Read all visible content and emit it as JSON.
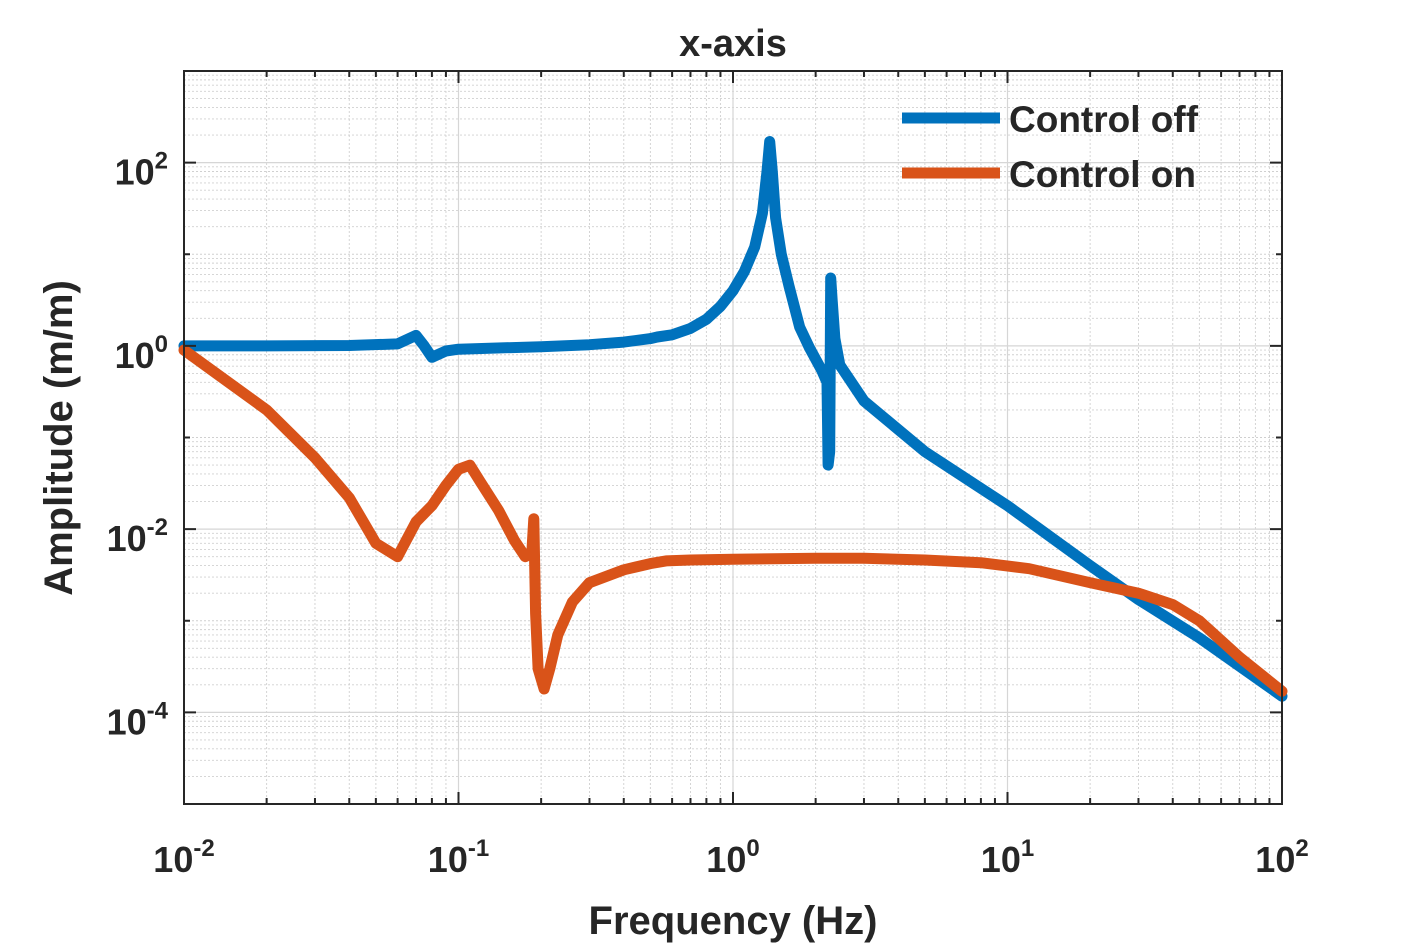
{
  "chart_data": {
    "type": "line",
    "title": "x-axis",
    "xlabel": "Frequency (Hz)",
    "ylabel": "Amplitude (m/m)",
    "xscale": "log",
    "yscale": "log",
    "xlim": [
      0.01,
      100
    ],
    "ylim": [
      1e-05,
      1000
    ],
    "grid": true,
    "minor_grid": true,
    "legend_position": "top-right",
    "x_ticks": [
      {
        "base": "10",
        "exp": "-2"
      },
      {
        "base": "10",
        "exp": "-1"
      },
      {
        "base": "10",
        "exp": "0"
      },
      {
        "base": "10",
        "exp": "1"
      },
      {
        "base": "10",
        "exp": "2"
      }
    ],
    "y_ticks": [
      {
        "base": "10",
        "exp": "-4"
      },
      {
        "base": "10",
        "exp": "-2"
      },
      {
        "base": "10",
        "exp": "0"
      },
      {
        "base": "10",
        "exp": "2"
      }
    ],
    "series": [
      {
        "name": "Control off",
        "color": "#0072BD",
        "points": [
          [
            0.01,
            1.0
          ],
          [
            0.02,
            1.0
          ],
          [
            0.04,
            1.01
          ],
          [
            0.06,
            1.05
          ],
          [
            0.07,
            1.3
          ],
          [
            0.075,
            1.0
          ],
          [
            0.08,
            0.75
          ],
          [
            0.09,
            0.88
          ],
          [
            0.1,
            0.92
          ],
          [
            0.2,
            0.98
          ],
          [
            0.3,
            1.03
          ],
          [
            0.4,
            1.1
          ],
          [
            0.5,
            1.2
          ],
          [
            0.53,
            1.25
          ],
          [
            0.6,
            1.32
          ],
          [
            0.7,
            1.55
          ],
          [
            0.8,
            1.95
          ],
          [
            0.9,
            2.7
          ],
          [
            1.0,
            4.0
          ],
          [
            1.1,
            6.5
          ],
          [
            1.2,
            12
          ],
          [
            1.28,
            28
          ],
          [
            1.33,
            80
          ],
          [
            1.36,
            170
          ],
          [
            1.39,
            80
          ],
          [
            1.43,
            25
          ],
          [
            1.5,
            10
          ],
          [
            1.6,
            4.5
          ],
          [
            1.75,
            1.6
          ],
          [
            1.9,
            0.95
          ],
          [
            2.1,
            0.55
          ],
          [
            2.2,
            0.4
          ],
          [
            2.22,
            0.05
          ],
          [
            2.25,
            0.07
          ],
          [
            2.27,
            5.5
          ],
          [
            2.3,
            3.0
          ],
          [
            2.35,
            1.2
          ],
          [
            2.45,
            0.62
          ],
          [
            3.0,
            0.25
          ],
          [
            5.0,
            0.07
          ],
          [
            10,
            0.018
          ],
          [
            20,
            0.004
          ],
          [
            30,
            0.0017
          ],
          [
            50,
            0.00065
          ],
          [
            100,
            0.00015
          ]
        ]
      },
      {
        "name": "Control on",
        "color": "#D95319",
        "points": [
          [
            0.01,
            0.9
          ],
          [
            0.02,
            0.2
          ],
          [
            0.03,
            0.06
          ],
          [
            0.04,
            0.022
          ],
          [
            0.05,
            0.007
          ],
          [
            0.06,
            0.005
          ],
          [
            0.07,
            0.012
          ],
          [
            0.08,
            0.018
          ],
          [
            0.09,
            0.03
          ],
          [
            0.1,
            0.045
          ],
          [
            0.11,
            0.05
          ],
          [
            0.12,
            0.033
          ],
          [
            0.14,
            0.016
          ],
          [
            0.16,
            0.0075
          ],
          [
            0.175,
            0.005
          ],
          [
            0.185,
            0.0055
          ],
          [
            0.188,
            0.013
          ],
          [
            0.191,
            0.0012
          ],
          [
            0.195,
            0.0003
          ],
          [
            0.205,
            0.00018
          ],
          [
            0.215,
            0.0003
          ],
          [
            0.23,
            0.0007
          ],
          [
            0.26,
            0.0016
          ],
          [
            0.3,
            0.0026
          ],
          [
            0.4,
            0.0036
          ],
          [
            0.5,
            0.0042
          ],
          [
            0.57,
            0.0045
          ],
          [
            0.7,
            0.0046
          ],
          [
            1.0,
            0.0047
          ],
          [
            2.0,
            0.0048
          ],
          [
            3.0,
            0.0048
          ],
          [
            5.0,
            0.0046
          ],
          [
            8.0,
            0.0043
          ],
          [
            12,
            0.0037
          ],
          [
            20,
            0.0026
          ],
          [
            30,
            0.002
          ],
          [
            40,
            0.0015
          ],
          [
            50,
            0.001
          ],
          [
            70,
            0.0004
          ],
          [
            100,
            0.00017
          ]
        ]
      }
    ]
  }
}
